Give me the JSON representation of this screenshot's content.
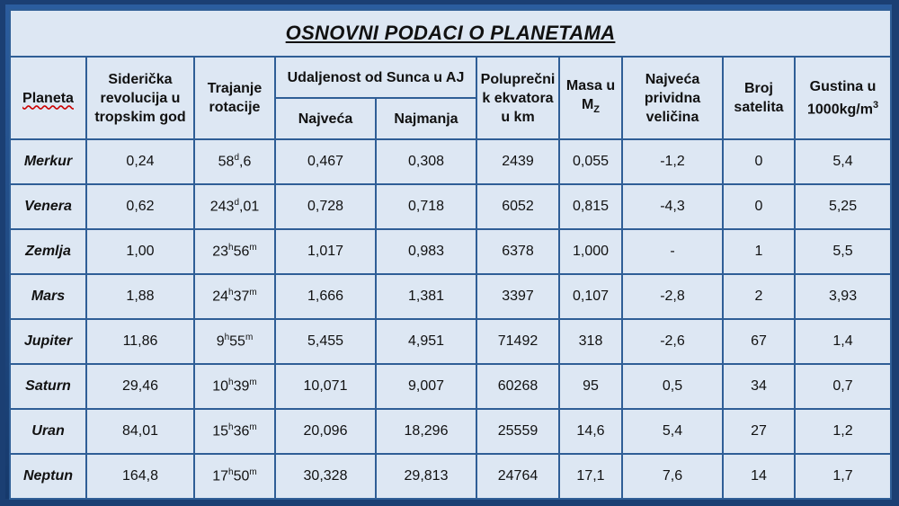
{
  "title": "OSNOVNI PODACI O PLANETAMA",
  "headers": {
    "planeta": "Planeta",
    "siderical_revolution": "Siderička revolucija u tropskim god",
    "rotation": "Trajanje rotacije",
    "distance": "Udaljenost od Sunca u AJ",
    "distance_max": "Najveća",
    "distance_min": "Najmanja",
    "radius": "Poluprečni k ekvatora u km",
    "mass_prefix": "Masa u M",
    "mass_sub": "Z",
    "magnitude": "Najveća prividna veličina",
    "satellites": "Broj satelita",
    "density_prefix": "Gustina u 1000kg/m",
    "density_sup": "3"
  },
  "rows": [
    {
      "name": "Merkur",
      "revolution": "0,24",
      "rot_a": "58",
      "rot_au": "d",
      "rot_b": ",6",
      "rot_bu": "",
      "dmax": "0,467",
      "dmin": "0,308",
      "radius": "2439",
      "mass": "0,055",
      "magnitude": "-1,2",
      "satellites": "0",
      "density": "5,4"
    },
    {
      "name": "Venera",
      "revolution": "0,62",
      "rot_a": "243",
      "rot_au": "d",
      "rot_b": ",01",
      "rot_bu": "",
      "dmax": "0,728",
      "dmin": "0,718",
      "radius": "6052",
      "mass": "0,815",
      "magnitude": "-4,3",
      "satellites": "0",
      "density": "5,25"
    },
    {
      "name": "Zemlja",
      "revolution": "1,00",
      "rot_a": "23",
      "rot_au": "h",
      "rot_b": "56",
      "rot_bu": "m",
      "dmax": "1,017",
      "dmin": "0,983",
      "radius": "6378",
      "mass": "1,000",
      "magnitude": "-",
      "satellites": "1",
      "density": "5,5"
    },
    {
      "name": "Mars",
      "revolution": "1,88",
      "rot_a": "24",
      "rot_au": "h",
      "rot_b": "37",
      "rot_bu": "m",
      "dmax": "1,666",
      "dmin": "1,381",
      "radius": "3397",
      "mass": "0,107",
      "magnitude": "-2,8",
      "satellites": "2",
      "density": "3,93"
    },
    {
      "name": "Jupiter",
      "revolution": "11,86",
      "rot_a": "9",
      "rot_au": "h",
      "rot_b": "55",
      "rot_bu": "m",
      "dmax": "5,455",
      "dmin": "4,951",
      "radius": "71492",
      "mass": "318",
      "magnitude": "-2,6",
      "satellites": "67",
      "density": "1,4"
    },
    {
      "name": "Saturn",
      "revolution": "29,46",
      "rot_a": "10",
      "rot_au": "h",
      "rot_b": "39",
      "rot_bu": "m",
      "dmax": "10,071",
      "dmin": "9,007",
      "radius": "60268",
      "mass": "95",
      "magnitude": "0,5",
      "satellites": "34",
      "density": "0,7"
    },
    {
      "name": "Uran",
      "revolution": "84,01",
      "rot_a": "15",
      "rot_au": "h",
      "rot_b": "36",
      "rot_bu": "m",
      "dmax": "20,096",
      "dmin": "18,296",
      "radius": "25559",
      "mass": "14,6",
      "magnitude": "5,4",
      "satellites": "27",
      "density": "1,2"
    },
    {
      "name": "Neptun",
      "revolution": "164,8",
      "rot_a": "17",
      "rot_au": "h",
      "rot_b": "50",
      "rot_bu": "m",
      "dmax": "30,328",
      "dmin": "29,813",
      "radius": "24764",
      "mass": "17,1",
      "magnitude": "7,6",
      "satellites": "14",
      "density": "1,7"
    }
  ]
}
